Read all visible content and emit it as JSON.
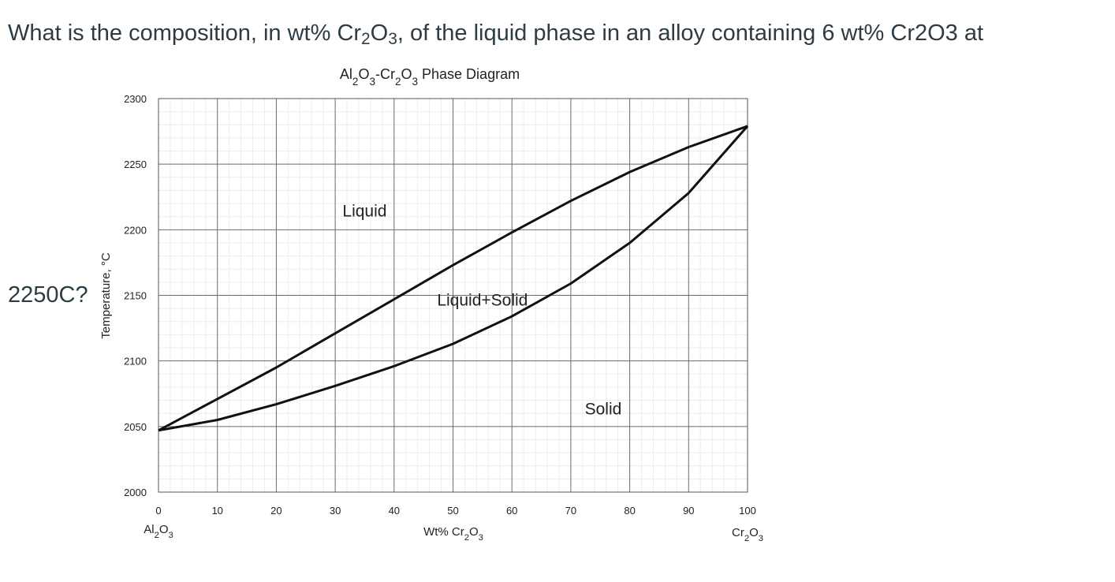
{
  "question": {
    "line1_html_parts": {
      "a": "What is the composition, in wt% Cr",
      "sub1": "2",
      "b": "O",
      "sub2": "3",
      "c": ", of the liquid phase in an alloy containing 6 wt% Cr2O3 at"
    },
    "line2": "2250C?"
  },
  "chart_data": {
    "type": "line",
    "title": "Al2O3-Cr2O3 Phase Diagram",
    "xlabel": "Wt% Cr2O3",
    "ylabel": "Temperature, °C",
    "xlim": [
      0,
      100
    ],
    "ylim": [
      2000,
      2300
    ],
    "xticks": [
      0,
      10,
      20,
      30,
      40,
      50,
      60,
      70,
      80,
      90,
      100
    ],
    "yticks": [
      2000,
      2050,
      2100,
      2150,
      2200,
      2250,
      2300
    ],
    "x_end_labels": {
      "left": "Al2O3",
      "right": "Cr2O3"
    },
    "grid": true,
    "series": [
      {
        "name": "",
        "points": [
          [
            0,
            2047
          ],
          [
            10,
            2071
          ],
          [
            20,
            2095
          ],
          [
            30,
            2121
          ],
          [
            40,
            2147
          ],
          [
            50,
            2173
          ],
          [
            60,
            2198
          ],
          [
            70,
            2222
          ],
          [
            80,
            2244
          ],
          [
            90,
            2263
          ],
          [
            100,
            2279
          ]
        ]
      },
      {
        "name": "",
        "points": [
          [
            0,
            2047
          ],
          [
            10,
            2055
          ],
          [
            20,
            2067
          ],
          [
            30,
            2081
          ],
          [
            40,
            2096
          ],
          [
            50,
            2113
          ],
          [
            60,
            2134
          ],
          [
            70,
            2159
          ],
          [
            80,
            2190
          ],
          [
            90,
            2228
          ],
          [
            100,
            2279
          ]
        ]
      }
    ],
    "region_labels": [
      {
        "text": "Liquid",
        "x": 35,
        "y": 2215
      },
      {
        "text": "Liquid+Solid",
        "x": 55,
        "y": 2147
      },
      {
        "text": "Solid",
        "x": 75.5,
        "y": 2064
      }
    ]
  }
}
